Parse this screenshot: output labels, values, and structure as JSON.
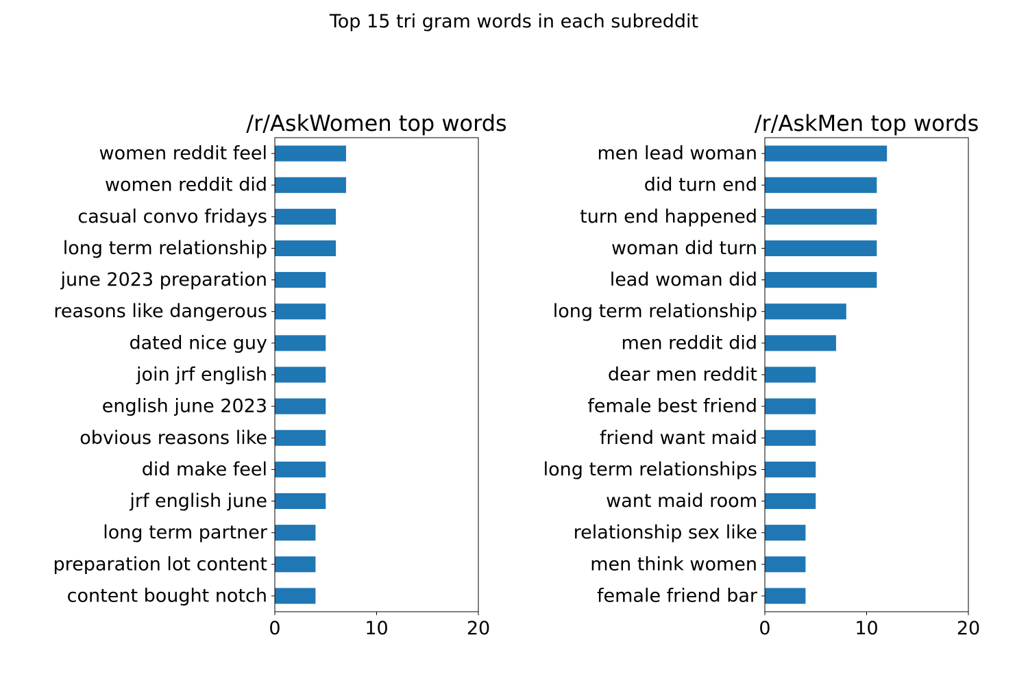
{
  "figure": {
    "suptitle": "Top 15 tri gram words in each subreddit"
  },
  "chart_data": [
    {
      "type": "bar",
      "orientation": "horizontal",
      "title": "/r/AskWomen top words",
      "xlabel": "",
      "ylabel": "",
      "xlim": [
        0,
        20
      ],
      "xticks": [
        0,
        10,
        20
      ],
      "grid": false,
      "color": "#1f77b4",
      "categories": [
        "women reddit feel",
        "women reddit did",
        "casual convo fridays",
        "long term relationship",
        "june 2023 preparation",
        "reasons like dangerous",
        "dated nice guy",
        "join jrf english",
        "english june 2023",
        "obvious reasons like",
        "did make feel",
        "jrf english june",
        "long term partner",
        "preparation lot content",
        "content bought notch"
      ],
      "values": [
        7,
        7,
        6,
        6,
        5,
        5,
        5,
        5,
        5,
        5,
        5,
        5,
        4,
        4,
        4
      ]
    },
    {
      "type": "bar",
      "orientation": "horizontal",
      "title": "/r/AskMen top words",
      "xlabel": "",
      "ylabel": "",
      "xlim": [
        0,
        20
      ],
      "xticks": [
        0,
        10,
        20
      ],
      "grid": false,
      "color": "#1f77b4",
      "categories": [
        "men lead woman",
        "did turn end",
        "turn end happened",
        "woman did turn",
        "lead woman did",
        "long term relationship",
        "men reddit did",
        "dear men reddit",
        "female best friend",
        "friend want maid",
        "long term relationships",
        "want maid room",
        "relationship sex like",
        "men think women",
        "female friend bar"
      ],
      "values": [
        12,
        11,
        11,
        11,
        11,
        8,
        7,
        5,
        5,
        5,
        5,
        5,
        4,
        4,
        4
      ]
    }
  ]
}
